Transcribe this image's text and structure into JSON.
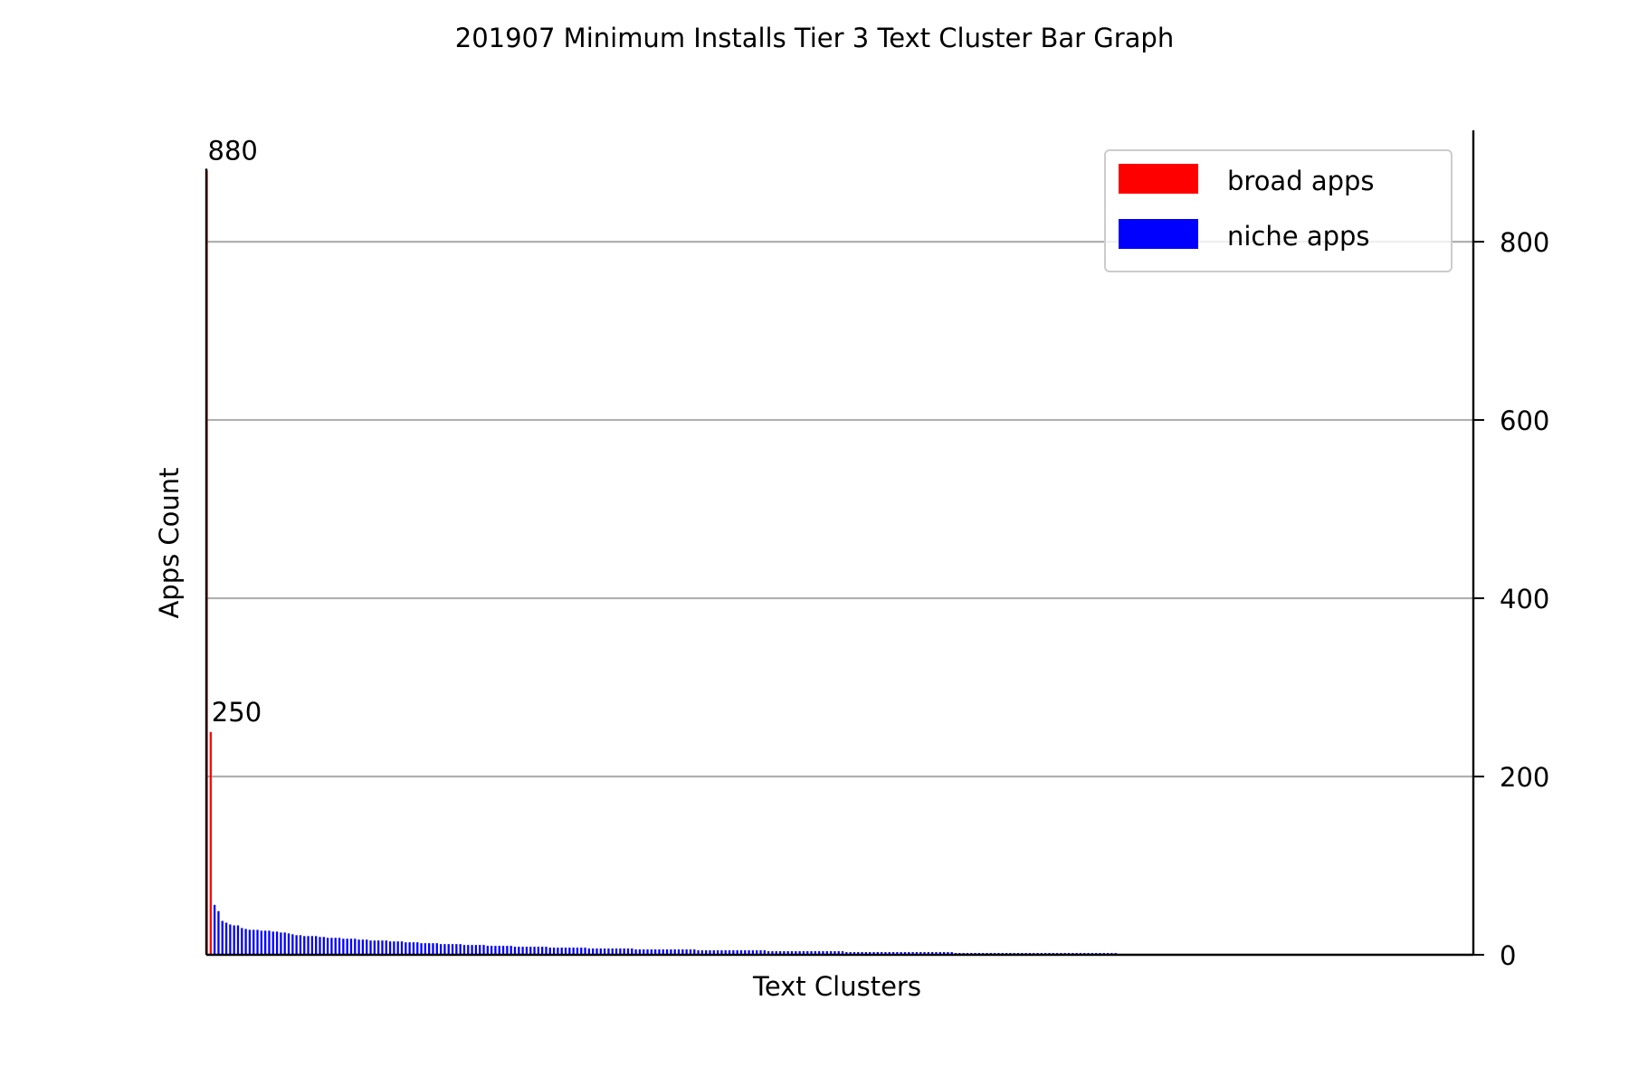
{
  "chart_data": {
    "type": "bar",
    "title": "201907 Minimum Installs Tier 3 Text Cluster Bar Graph",
    "xlabel": "Text Clusters",
    "ylabel": "Apps Count",
    "ylim": [
      0,
      925
    ],
    "y_ticks": [
      "0",
      "200",
      "400",
      "600",
      "800"
    ],
    "y_axis_side": "right",
    "grid": "horizontal",
    "legend_position": "top-right",
    "series": [
      {
        "name": "broad apps",
        "color": "#ff0000",
        "values": [
          880,
          250
        ]
      },
      {
        "name": "niche apps",
        "color": "#0000ff",
        "values": [
          56,
          49,
          38,
          36,
          34,
          33,
          33,
          30,
          29,
          28,
          28,
          28,
          27,
          27,
          27,
          26,
          26,
          25,
          25,
          24,
          23,
          22,
          22,
          21,
          21,
          21,
          21,
          20,
          20,
          19,
          19,
          19,
          19,
          18,
          18,
          18,
          18,
          17,
          17,
          17,
          16,
          16,
          16,
          16,
          16,
          15,
          15,
          15,
          15,
          14,
          14,
          14,
          14,
          13,
          13,
          13,
          13,
          13,
          12,
          12,
          12,
          12,
          12,
          12,
          11,
          11,
          11,
          11,
          11,
          11,
          10,
          10,
          10,
          10,
          10,
          10,
          10,
          9,
          9,
          9,
          9,
          9,
          9,
          9,
          9,
          9,
          8,
          8,
          8,
          8,
          8,
          8,
          8,
          8,
          8,
          8,
          7,
          7,
          7,
          7,
          7,
          7,
          7,
          7,
          7,
          7,
          7,
          7,
          6,
          6,
          6,
          6,
          6,
          6,
          6,
          6,
          6,
          6,
          6,
          6,
          6,
          6,
          6,
          6,
          5,
          5,
          5,
          5,
          5,
          5,
          5,
          5,
          5,
          5,
          5,
          5,
          5,
          5,
          5,
          5,
          5,
          5,
          4,
          4,
          4,
          4,
          4,
          4,
          4,
          4,
          4,
          4,
          4,
          4,
          4,
          4,
          4,
          4,
          4,
          4,
          4,
          4,
          3,
          3,
          3,
          3,
          3,
          3,
          3,
          3,
          3,
          3,
          3,
          3,
          3,
          3,
          3,
          3,
          3,
          3,
          3,
          3,
          3,
          3,
          3,
          3,
          3,
          3,
          3,
          3,
          2,
          2,
          2,
          2,
          2,
          2,
          2,
          2,
          2,
          2,
          2,
          2,
          2,
          2,
          2,
          2,
          2,
          2,
          2,
          2,
          2,
          2,
          2,
          2,
          2,
          2,
          2,
          2,
          2,
          2,
          2,
          2,
          2,
          2,
          2,
          2,
          2,
          2,
          2,
          2,
          2,
          2,
          1,
          1,
          1,
          1,
          1,
          1,
          1,
          1,
          1,
          1,
          1,
          1,
          1,
          1,
          1,
          1,
          1,
          1,
          1,
          1,
          1,
          1,
          1,
          1,
          1,
          1,
          1,
          1,
          1,
          1,
          1,
          1,
          1,
          1,
          1,
          1,
          1,
          1,
          1,
          1,
          1,
          1,
          1,
          1,
          1,
          1,
          1,
          1,
          1,
          1,
          1,
          1,
          1,
          1,
          1,
          1,
          1,
          1,
          1
        ]
      }
    ],
    "data_labels": [
      "880",
      "250"
    ]
  }
}
